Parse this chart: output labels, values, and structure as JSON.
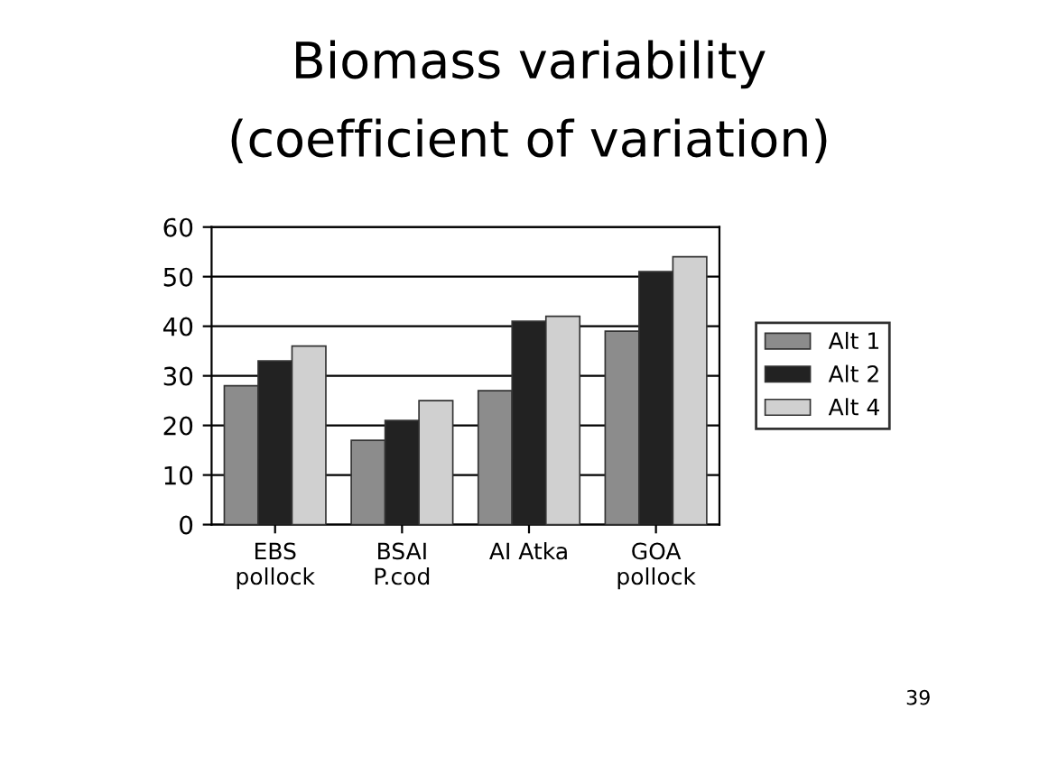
{
  "chart_data": {
    "type": "bar",
    "title": "Biomass variability",
    "subtitle": "(coefficient of variation)",
    "categories": [
      "EBS\npollock",
      "BSAI\nP.cod",
      "AI Atka",
      "GOA\npollock"
    ],
    "series": [
      {
        "name": "Alt 1",
        "color": "#8c8c8c",
        "values": [
          28,
          17,
          27,
          39
        ]
      },
      {
        "name": "Alt 2",
        "color": "#222222",
        "values": [
          33,
          21,
          41,
          51
        ]
      },
      {
        "name": "Alt 4",
        "color": "#d0d0d0",
        "values": [
          36,
          25,
          42,
          54
        ]
      }
    ],
    "ylim": [
      0,
      60
    ],
    "yticks": [
      0,
      10,
      20,
      30,
      40,
      50,
      60
    ],
    "grid": "y",
    "legend": "right",
    "annotations": [
      "39"
    ]
  }
}
